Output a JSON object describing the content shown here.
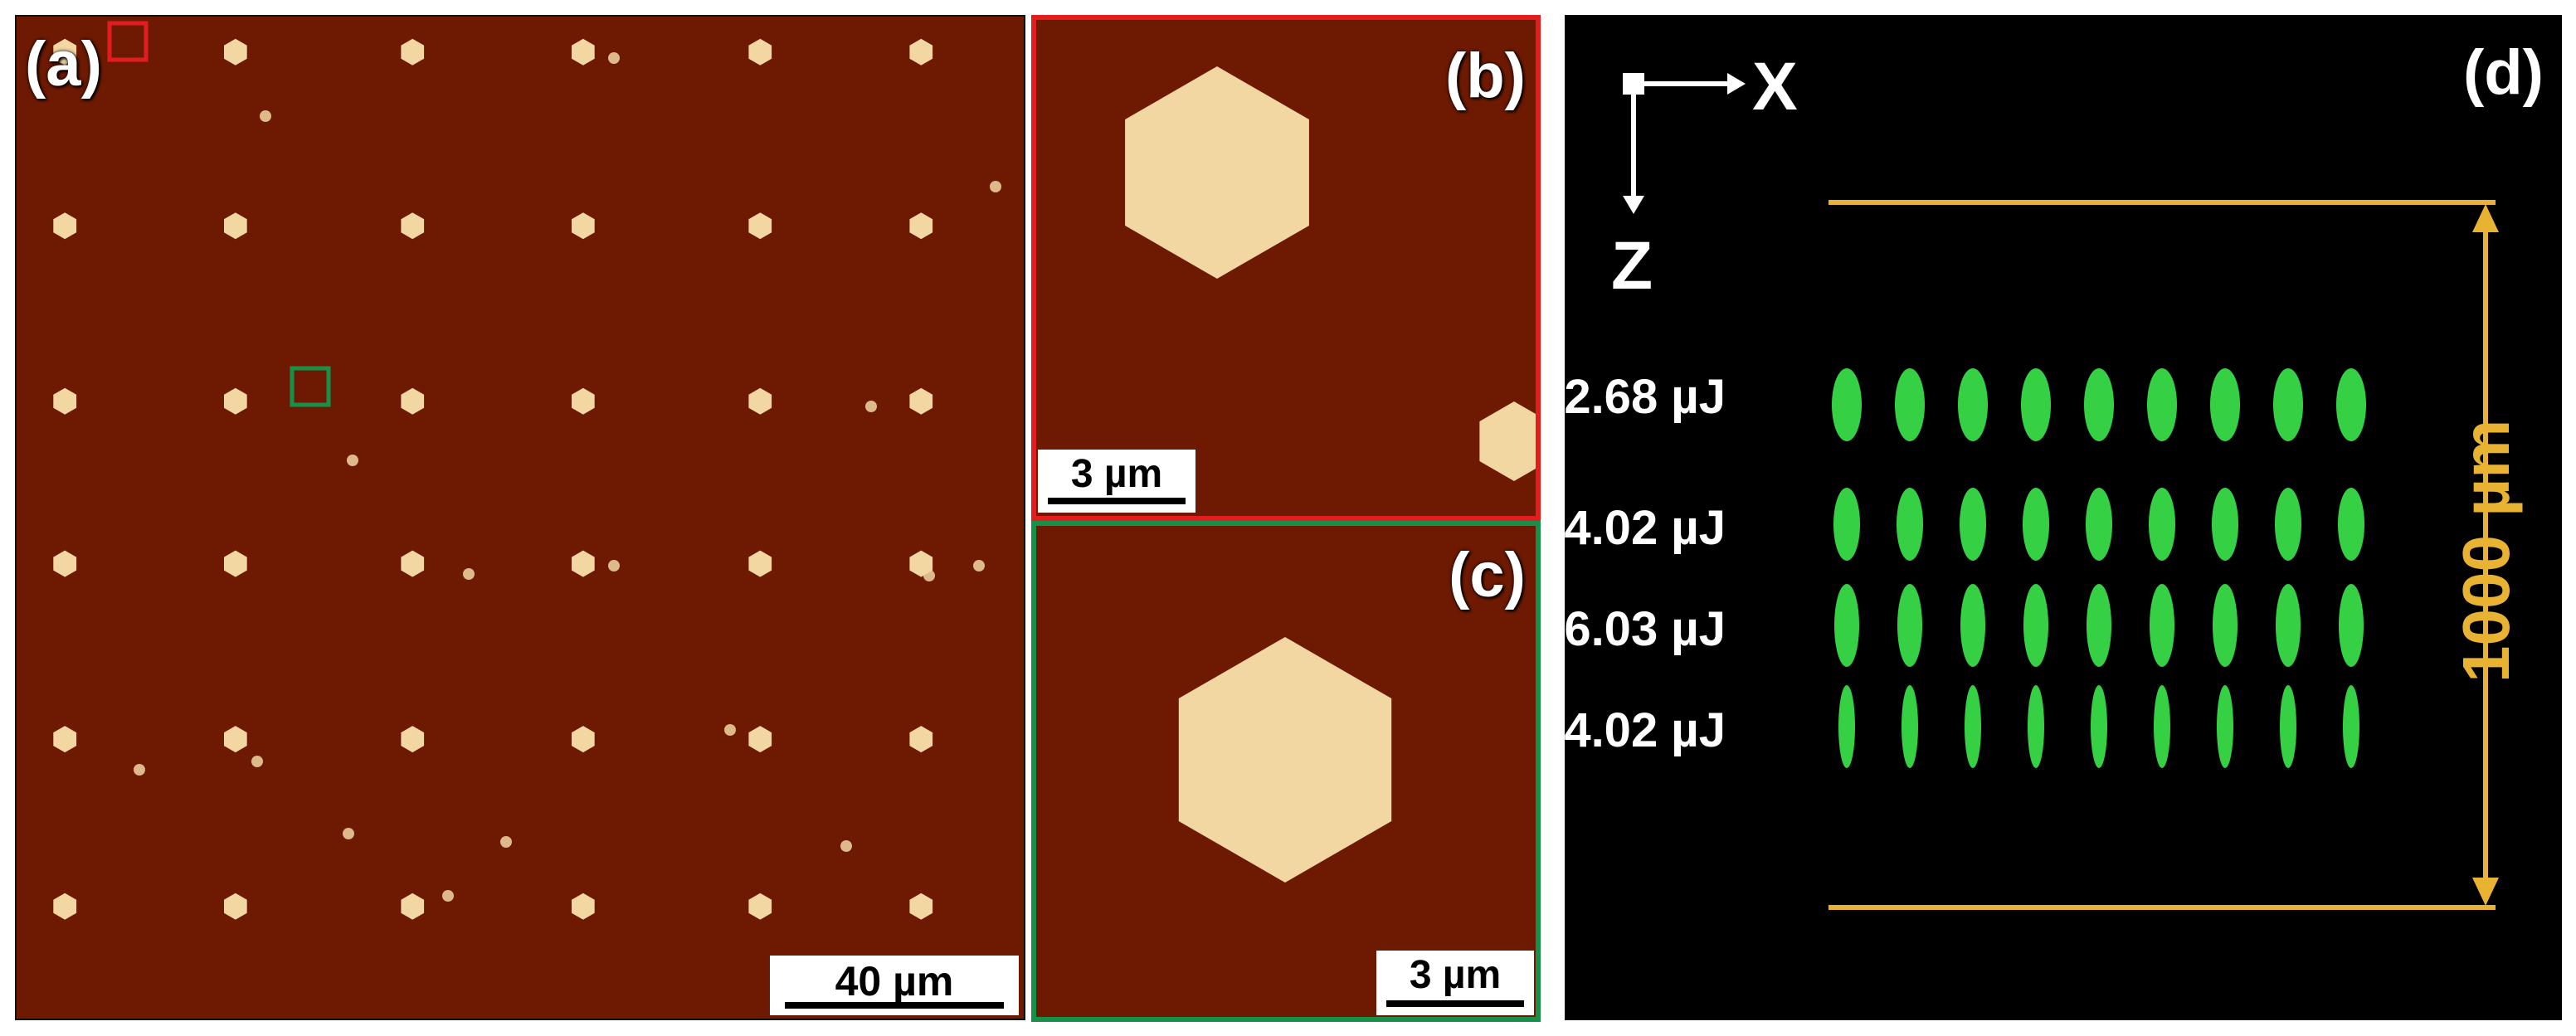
{
  "figure": {
    "panel_a": {
      "label": "(a)",
      "scale_bar": "40 µm"
    },
    "panel_b": {
      "label": "(b)",
      "scale_bar": "3 µm"
    },
    "panel_c": {
      "label": "(c)",
      "scale_bar": "3 µm"
    },
    "panel_d": {
      "label": "(d)",
      "axis_x": "X",
      "axis_z": "Z",
      "dimension": "1000 µm",
      "pulse_energies": [
        "2.68 µJ",
        "4.02 µJ",
        "6.03 µJ",
        "4.02 µJ"
      ]
    }
  },
  "colors": {
    "afm_background": "#6e1a03",
    "crystal": "#f2d7a2",
    "highlight_red": "#e21d1d",
    "highlight_green": "#17904a",
    "dimension_gold": "#e8b233",
    "fluorescence_green": "#3be24a"
  }
}
